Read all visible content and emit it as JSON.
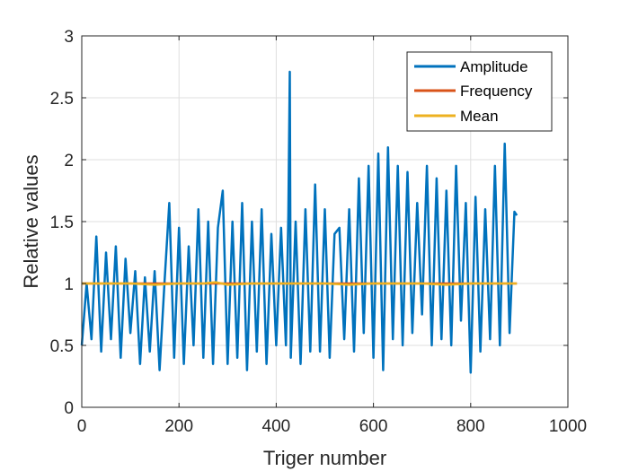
{
  "chart_data": {
    "type": "line",
    "title": "",
    "xlabel": "Triger number",
    "ylabel": "Relative values",
    "xlim": [
      0,
      1000
    ],
    "ylim": [
      0,
      3
    ],
    "xticks": [
      0,
      200,
      400,
      600,
      800,
      1000
    ],
    "xtick_labels": [
      "0",
      "200",
      "400",
      "600",
      "800",
      "1000"
    ],
    "yticks": [
      0,
      0.5,
      1,
      1.5,
      2,
      2.5,
      3
    ],
    "ytick_labels": [
      "0",
      "0.5",
      "1",
      "1.5",
      "2",
      "2.5",
      "3"
    ],
    "grid": true,
    "legend_position": "top-right",
    "series": [
      {
        "name": "Amplitude",
        "color": "#0072BD",
        "x": [
          0,
          10,
          20,
          30,
          40,
          50,
          60,
          70,
          80,
          90,
          100,
          110,
          120,
          130,
          140,
          150,
          160,
          170,
          180,
          190,
          200,
          210,
          220,
          230,
          240,
          250,
          260,
          270,
          280,
          290,
          300,
          310,
          320,
          330,
          340,
          350,
          360,
          370,
          380,
          390,
          400,
          410,
          420,
          425,
          428,
          430,
          440,
          450,
          460,
          470,
          480,
          490,
          500,
          510,
          520,
          530,
          540,
          550,
          560,
          570,
          580,
          590,
          600,
          610,
          620,
          630,
          640,
          650,
          660,
          670,
          680,
          690,
          700,
          710,
          720,
          730,
          740,
          750,
          760,
          770,
          780,
          790,
          800,
          810,
          820,
          830,
          840,
          850,
          860,
          870,
          880,
          890,
          895
        ],
        "y": [
          0.5,
          1.0,
          0.55,
          1.38,
          0.45,
          1.25,
          0.55,
          1.3,
          0.4,
          1.2,
          0.6,
          1.1,
          0.35,
          1.05,
          0.45,
          1.1,
          0.3,
          1.0,
          1.65,
          0.4,
          1.45,
          0.35,
          1.3,
          0.5,
          1.6,
          0.4,
          1.5,
          0.35,
          1.45,
          1.75,
          0.35,
          1.5,
          0.4,
          1.65,
          0.3,
          1.5,
          0.45,
          1.6,
          0.35,
          1.4,
          0.5,
          1.45,
          0.5,
          1.55,
          2.71,
          0.4,
          1.5,
          0.35,
          1.6,
          0.45,
          1.8,
          0.45,
          1.6,
          0.4,
          1.4,
          1.45,
          0.55,
          1.6,
          0.45,
          1.85,
          0.6,
          1.95,
          0.4,
          2.05,
          0.3,
          2.1,
          0.55,
          1.95,
          0.5,
          1.9,
          0.6,
          1.65,
          0.75,
          1.95,
          0.5,
          1.85,
          0.55,
          1.75,
          0.5,
          1.95,
          0.7,
          1.65,
          0.28,
          1.7,
          0.45,
          1.6,
          0.55,
          1.95,
          0.5,
          2.13,
          0.6,
          1.58,
          1.55
        ]
      },
      {
        "name": "Frequency",
        "color": "#D95319",
        "x": [
          0,
          100,
          200,
          300,
          400,
          500,
          600,
          700,
          800,
          895
        ],
        "y": [
          1.0,
          1.0,
          1.0,
          1.0,
          1.0,
          1.0,
          1.0,
          1.0,
          1.0,
          1.0
        ]
      },
      {
        "name": "Mean",
        "color": "#EDB120",
        "x": [
          0,
          50,
          100,
          150,
          200,
          250,
          275,
          300,
          350,
          400,
          450,
          500,
          550,
          600,
          650,
          700,
          750,
          800,
          850,
          895
        ],
        "y": [
          1.0,
          1.0,
          1.0,
          0.99,
          1.0,
          1.0,
          1.01,
          0.99,
          1.0,
          1.0,
          1.0,
          1.0,
          0.99,
          1.0,
          1.0,
          1.0,
          0.99,
          1.0,
          1.0,
          1.0
        ]
      }
    ]
  }
}
